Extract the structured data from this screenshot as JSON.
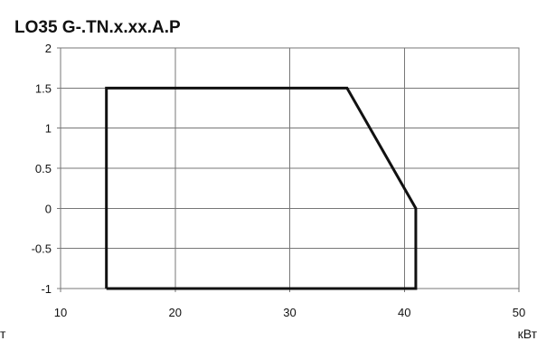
{
  "chart_data": {
    "type": "line",
    "title": "LO35 G-.TN.x.xx.A.P",
    "xlabel": "кВт",
    "ylabel": "",
    "x_left_fragment": "т",
    "xlim": [
      10,
      50
    ],
    "ylim": [
      -1,
      2
    ],
    "x_ticks": [
      10,
      20,
      30,
      40,
      50
    ],
    "y_ticks": [
      -1,
      -0.5,
      0,
      0.5,
      1,
      1.5,
      2
    ],
    "x_tick_labels": [
      "10",
      "20",
      "30",
      "40",
      "50"
    ],
    "y_tick_labels": [
      "-1",
      "-0.5",
      "0",
      "0.5",
      "1",
      "1.5",
      "2"
    ],
    "grid": true,
    "series": [
      {
        "color": "#111111",
        "points": [
          {
            "x": 14,
            "y": -1
          },
          {
            "x": 14,
            "y": 1.5
          },
          {
            "x": 35,
            "y": 1.5
          },
          {
            "x": 41,
            "y": 0
          },
          {
            "x": 41,
            "y": -1
          },
          {
            "x": 14,
            "y": -1
          }
        ]
      }
    ]
  }
}
